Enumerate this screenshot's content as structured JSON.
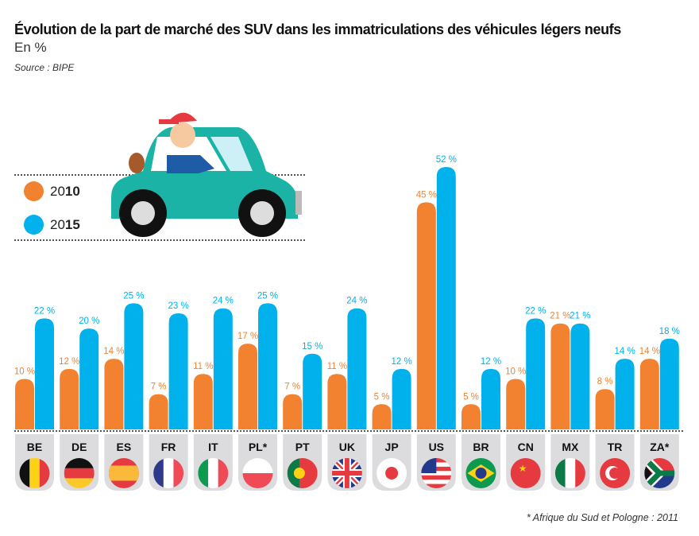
{
  "header": {
    "title": "Évolution de la part de marché des SUV dans les immatriculations des véhicules légers neufs",
    "subtitle": "En %",
    "source": "Source : BIPE"
  },
  "legend": [
    {
      "prefix": "20",
      "bold": "10",
      "color": "#f28230"
    },
    {
      "prefix": "20",
      "bold": "15",
      "color": "#00b1eb"
    }
  ],
  "footnote": "* Afrique du Sud et Pologne : 2011",
  "chart_data": {
    "type": "bar",
    "title": "Évolution de la part de marché des SUV dans les immatriculations des véhicules légers neufs",
    "ylabel": "En %",
    "ylim": [
      0,
      52
    ],
    "categories": [
      "BE",
      "DE",
      "ES",
      "FR",
      "IT",
      "PL*",
      "PT",
      "UK",
      "JP",
      "US",
      "BR",
      "CN",
      "MX",
      "TR",
      "ZA*"
    ],
    "series": [
      {
        "name": "2010",
        "color": "#f28230",
        "values": [
          10,
          12,
          14,
          7,
          11,
          17,
          7,
          11,
          5,
          45,
          5,
          10,
          21,
          8,
          14
        ]
      },
      {
        "name": "2015",
        "color": "#00b1eb",
        "values": [
          22,
          20,
          25,
          23,
          24,
          25,
          15,
          24,
          12,
          52,
          12,
          22,
          21,
          14,
          18
        ]
      }
    ],
    "value_suffix": "%"
  }
}
